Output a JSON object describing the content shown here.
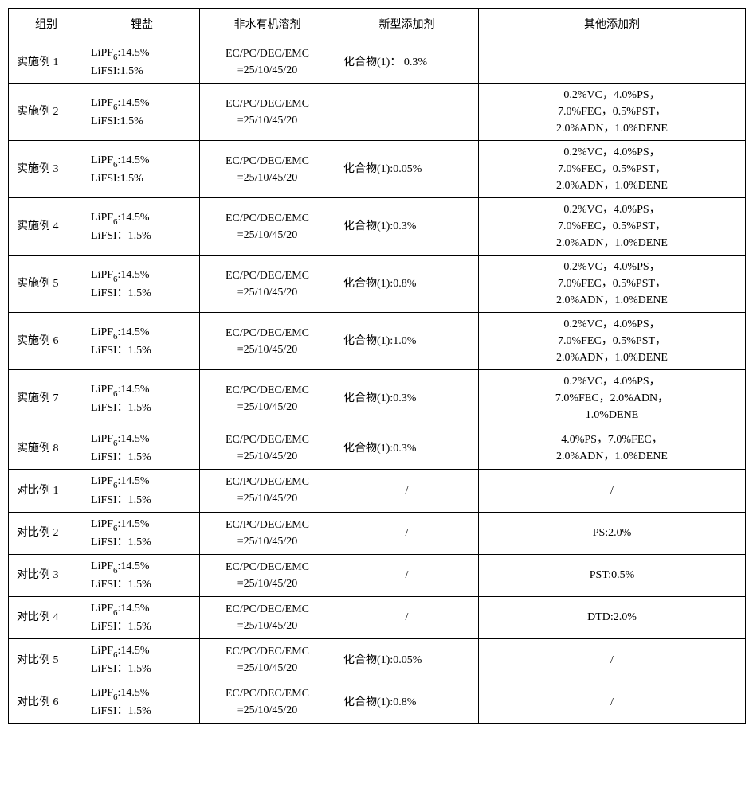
{
  "columns": [
    "组别",
    "锂盐",
    "非水有机溶剂",
    "新型添加剂",
    "其他添加剂"
  ],
  "rows": [
    {
      "group": "实施例 1",
      "salt_line1_pre": "LiPF",
      "salt_line1_sub": "6",
      "salt_line1_post": ":14.5%",
      "salt_line2": "LiFSI:1.5%",
      "solvent_l1": "EC/PC/DEC/EMC",
      "solvent_l2": "=25/10/45/20",
      "new_additive": "化合物(1)： 0.3%",
      "other_html": ""
    },
    {
      "group": "实施例 2",
      "salt_line1_pre": "LiPF",
      "salt_line1_sub": "6",
      "salt_line1_post": ":14.5%",
      "salt_line2": "LiFSI:1.5%",
      "solvent_l1": "EC/PC/DEC/EMC",
      "solvent_l2": "=25/10/45/20",
      "new_additive": "",
      "other_l1": "0.2%VC，4.0%PS，",
      "other_l2": "7.0%FEC，0.5%PST，",
      "other_l3": "2.0%ADN，1.0%DENE"
    },
    {
      "group": "实施例 3",
      "salt_line1_pre": "LiPF",
      "salt_line1_sub": "6",
      "salt_line1_post": ":14.5%",
      "salt_line2": "LiFSI:1.5%",
      "solvent_l1": "EC/PC/DEC/EMC",
      "solvent_l2": "=25/10/45/20",
      "new_additive": "化合物(1):0.05%",
      "other_l1": "0.2%VC，4.0%PS，",
      "other_l2": "7.0%FEC，0.5%PST，",
      "other_l3": "2.0%ADN，1.0%DENE"
    },
    {
      "group": "实施例 4",
      "salt_line1_pre": "LiPF",
      "salt_line1_sub": "6",
      "salt_line1_post": ":14.5%",
      "salt_line2": "LiFSI：1.5%",
      "solvent_l1": "EC/PC/DEC/EMC",
      "solvent_l2": "=25/10/45/20",
      "new_additive": "化合物(1):0.3%",
      "other_l1": "0.2%VC，4.0%PS，",
      "other_l2": "7.0%FEC，0.5%PST，",
      "other_l3": "2.0%ADN，1.0%DENE"
    },
    {
      "group": "实施例 5",
      "salt_line1_pre": "LiPF",
      "salt_line1_sub": "6",
      "salt_line1_post": ":14.5%",
      "salt_line2": "LiFSI：1.5%",
      "solvent_l1": "EC/PC/DEC/EMC",
      "solvent_l2": "=25/10/45/20",
      "new_additive": "化合物(1):0.8%",
      "other_l1": "0.2%VC，4.0%PS，",
      "other_l2": "7.0%FEC，0.5%PST，",
      "other_l3": "2.0%ADN，1.0%DENE"
    },
    {
      "group": "实施例 6",
      "salt_line1_pre": "LiPF",
      "salt_line1_sub": "6",
      "salt_line1_post": ":14.5%",
      "salt_line2": "LiFSI：1.5%",
      "solvent_l1": "EC/PC/DEC/EMC",
      "solvent_l2": "=25/10/45/20",
      "new_additive": "化合物(1):1.0%",
      "other_l1": "0.2%VC，4.0%PS，",
      "other_l2": "7.0%FEC，0.5%PST，",
      "other_l3": "2.0%ADN，1.0%DENE"
    },
    {
      "group": "实施例 7",
      "salt_line1_pre": "LiPF",
      "salt_line1_sub": "6",
      "salt_line1_post": ":14.5%",
      "salt_line2": "LiFSI：1.5%",
      "solvent_l1": "EC/PC/DEC/EMC",
      "solvent_l2": "=25/10/45/20",
      "new_additive": "化合物(1):0.3%",
      "other_l1": "0.2%VC，4.0%PS，",
      "other_l2": "7.0%FEC，2.0%ADN，",
      "other_l3": "1.0%DENE"
    },
    {
      "group": "实施例 8",
      "salt_line1_pre": "LiPF",
      "salt_line1_sub": "6",
      "salt_line1_post": ":14.5%",
      "salt_line2": "LiFSI：1.5%",
      "solvent_l1": "EC/PC/DEC/EMC",
      "solvent_l2": "=25/10/45/20",
      "new_additive": "化合物(1):0.3%",
      "other_l1": "4.0%PS，7.0%FEC，",
      "other_l2": "2.0%ADN，1.0%DENE",
      "other_l3": ""
    },
    {
      "group": "对比例 1",
      "salt_line1_pre": "LiPF",
      "salt_line1_sub": "6",
      "salt_line1_post": ":14.5%",
      "salt_line2": "LiFSI：1.5%",
      "solvent_l1": "EC/PC/DEC/EMC",
      "solvent_l2": "=25/10/45/20",
      "new_additive": "/",
      "other_single": "/"
    },
    {
      "group": "对比例 2",
      "salt_line1_pre": "LiPF",
      "salt_line1_sub": "6",
      "salt_line1_post": ":14.5%",
      "salt_line2": "LiFSI：1.5%",
      "solvent_l1": "EC/PC/DEC/EMC",
      "solvent_l2": "=25/10/45/20",
      "new_additive": "/",
      "other_single": "PS:2.0%"
    },
    {
      "group": "对比例 3",
      "salt_line1_pre": "LiPF",
      "salt_line1_sub": "6",
      "salt_line1_post": ":14.5%",
      "salt_line2": "LiFSI：1.5%",
      "solvent_l1": "EC/PC/DEC/EMC",
      "solvent_l2": "=25/10/45/20",
      "new_additive": "/",
      "other_single": "PST:0.5%"
    },
    {
      "group": "对比例 4",
      "salt_line1_pre": "LiPF",
      "salt_line1_sub": "6",
      "salt_line1_post": ":14.5%",
      "salt_line2": "LiFSI：1.5%",
      "solvent_l1": "EC/PC/DEC/EMC",
      "solvent_l2": "=25/10/45/20",
      "new_additive": "/",
      "other_single": "DTD:2.0%"
    },
    {
      "group": "对比例 5",
      "salt_line1_pre": "LiPF",
      "salt_line1_sub": "6",
      "salt_line1_post": ":14.5%",
      "salt_line2": "LiFSI：1.5%",
      "solvent_l1": "EC/PC/DEC/EMC",
      "solvent_l2": "=25/10/45/20",
      "new_additive": "化合物(1):0.05%",
      "other_single": "/"
    },
    {
      "group": "对比例 6",
      "salt_line1_pre": "LiPF",
      "salt_line1_sub": "6",
      "salt_line1_post": ":14.5%",
      "salt_line2": "LiFSI：1.5%",
      "solvent_l1": "EC/PC/DEC/EMC",
      "solvent_l2": "=25/10/45/20",
      "new_additive": "化合物(1):0.8%",
      "other_single": "/"
    }
  ]
}
